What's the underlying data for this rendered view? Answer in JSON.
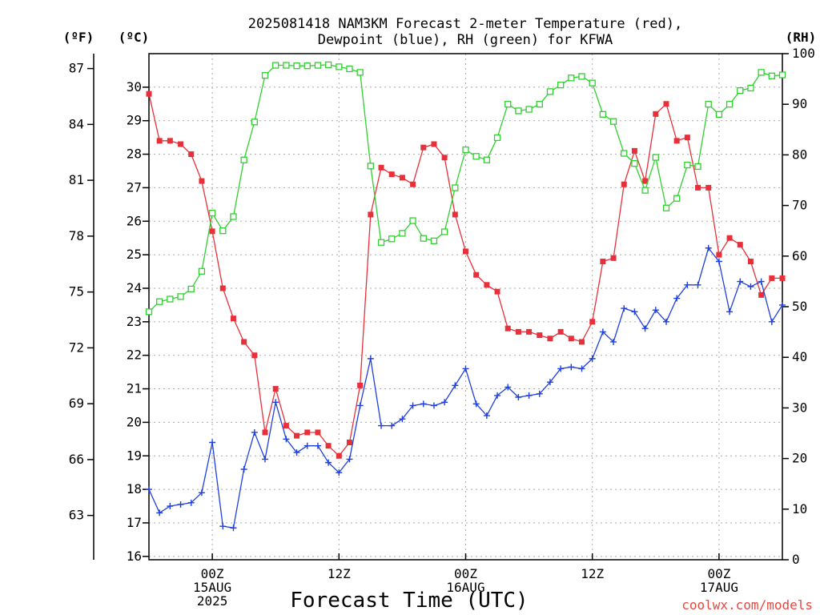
{
  "chart_data": {
    "type": "line",
    "title_lines": [
      "2025081418 NAM3KM Forecast 2-meter Temperature (red),",
      "Dewpoint (blue), RH (green) for KFWA"
    ],
    "xlabel": "Forecast Time (UTC)",
    "credit": "coolwx.com/models",
    "units": {
      "fahrenheit": "(ºF)",
      "celsius": "(ºC)",
      "rh": "(RH)"
    },
    "x_hours_from_start": [
      0,
      1,
      2,
      3,
      4,
      5,
      6,
      7,
      8,
      9,
      10,
      11,
      12,
      13,
      14,
      15,
      16,
      17,
      18,
      19,
      20,
      21,
      22,
      23,
      24,
      25,
      26,
      27,
      28,
      29,
      30,
      31,
      32,
      33,
      34,
      35,
      36,
      37,
      38,
      39,
      40,
      41,
      42,
      43,
      44,
      45,
      46,
      47,
      48,
      49,
      50,
      51,
      52,
      53,
      54,
      55,
      56,
      57,
      58,
      59,
      60
    ],
    "xlim_hours": [
      0,
      60
    ],
    "celsius_ylim": [
      15.9,
      31
    ],
    "fahrenheit_ticks": [
      "87",
      "84",
      "81",
      "78",
      "75",
      "72",
      "69",
      "66",
      "63"
    ],
    "celsius_ticks": [
      "30",
      "29",
      "28",
      "27",
      "26",
      "25",
      "24",
      "23",
      "22",
      "21",
      "20",
      "19",
      "18",
      "17",
      "16"
    ],
    "rh_ticks": [
      "100",
      "90",
      "80",
      "70",
      "60",
      "50",
      "40",
      "30",
      "20",
      "10",
      "0"
    ],
    "rh_ylim": [
      0,
      100
    ],
    "x_tick_labels": [
      {
        "hour": 6,
        "lines": [
          "00Z",
          "15AUG",
          "2025"
        ]
      },
      {
        "hour": 18,
        "lines": [
          "12Z"
        ]
      },
      {
        "hour": 30,
        "lines": [
          "00Z",
          "16AUG"
        ]
      },
      {
        "hour": 42,
        "lines": [
          "12Z"
        ]
      },
      {
        "hour": 54,
        "lines": [
          "00Z",
          "17AUG"
        ]
      }
    ],
    "grid": true,
    "series": [
      {
        "name": "Temperature",
        "unit": "C",
        "color": "#e8303a",
        "marker": "filled-square",
        "values": [
          29.8,
          28.4,
          28.4,
          28.3,
          28.0,
          27.2,
          25.7,
          24.0,
          23.1,
          22.4,
          22.0,
          19.7,
          21.0,
          19.9,
          19.6,
          19.7,
          19.7,
          19.3,
          19.0,
          19.4,
          21.1,
          26.2,
          27.6,
          27.4,
          27.3,
          27.1,
          28.2,
          28.3,
          27.9,
          26.2,
          25.1,
          24.4,
          24.1,
          23.9,
          22.8,
          22.7,
          22.7,
          22.6,
          22.5,
          22.7,
          22.5,
          22.4,
          23.0,
          24.8,
          24.9,
          27.1,
          28.1,
          27.2,
          29.2,
          29.5,
          28.4,
          28.5,
          27.0,
          27.0,
          25.0,
          25.5,
          25.3,
          24.8,
          23.8,
          24.3,
          24.3
        ]
      },
      {
        "name": "Dewpoint",
        "unit": "C",
        "color": "#1f3fe0",
        "marker": "plus",
        "values": [
          18.0,
          17.3,
          17.5,
          17.55,
          17.6,
          17.9,
          19.4,
          16.9,
          16.85,
          18.6,
          19.7,
          18.9,
          20.6,
          19.5,
          19.1,
          19.3,
          19.3,
          18.8,
          18.5,
          18.9,
          20.5,
          21.9,
          19.9,
          19.9,
          20.1,
          20.5,
          20.55,
          20.5,
          20.6,
          21.1,
          21.6,
          20.55,
          20.2,
          20.8,
          21.05,
          20.75,
          20.8,
          20.85,
          21.2,
          21.6,
          21.65,
          21.6,
          21.9,
          22.7,
          22.4,
          23.4,
          23.3,
          22.8,
          23.35,
          23.0,
          23.7,
          24.1,
          24.1,
          25.2,
          24.8,
          23.3,
          24.2,
          24.05,
          24.2,
          23.0,
          23.5
        ]
      },
      {
        "name": "RH",
        "unit": "%",
        "color": "#2fd02f",
        "marker": "open-square",
        "values": [
          49,
          51,
          51.5,
          52,
          53.5,
          57,
          68.5,
          65,
          67.8,
          79,
          86.5,
          95.7,
          97.7,
          97.7,
          97.6,
          97.6,
          97.7,
          97.8,
          97.4,
          97,
          96.3,
          77.8,
          62.7,
          63.4,
          64.5,
          67,
          63.5,
          63,
          64.8,
          73.5,
          81,
          79.7,
          79,
          83.4,
          90,
          88.7,
          89,
          90,
          92.5,
          93.8,
          95.2,
          95.5,
          94.2,
          88,
          86.6,
          80.3,
          78.3,
          73,
          79.5,
          69.5,
          71.4,
          78,
          77.7,
          90,
          88,
          90,
          92.7,
          93.2,
          96.3,
          95.6,
          95.8
        ]
      }
    ]
  }
}
